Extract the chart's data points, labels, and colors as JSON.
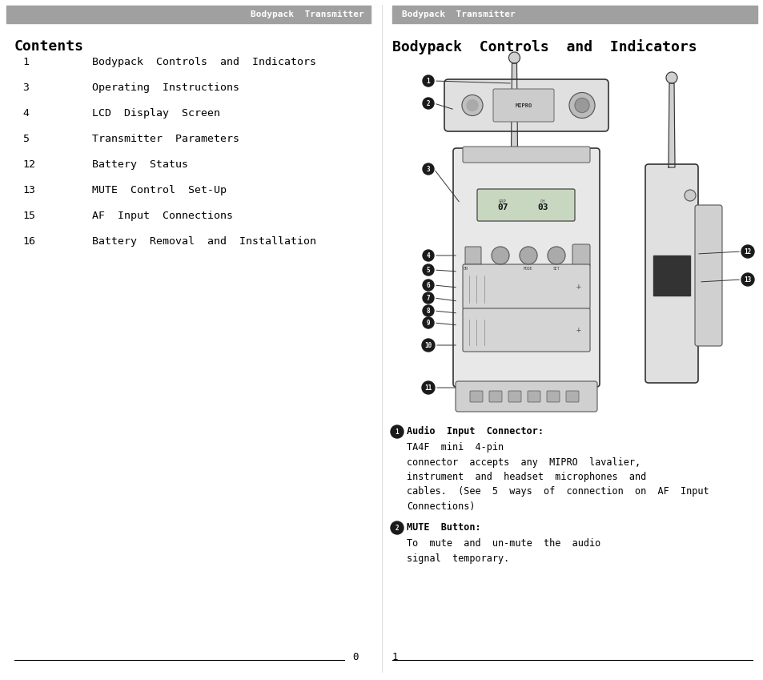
{
  "header_color": "#a0a0a0",
  "header_text": "Bodypack  Transmitter",
  "header_text_color": "#ffffff",
  "bg_color": "#ffffff",
  "text_color": "#000000",
  "left_title": "Contents",
  "toc_items": [
    [
      "1",
      "Bodypack  Controls  and  Indicators"
    ],
    [
      "3",
      "Operating  Instructions"
    ],
    [
      "4",
      "LCD  Display  Screen"
    ],
    [
      "5",
      "Transmitter  Parameters"
    ],
    [
      "12",
      "Battery  Status"
    ],
    [
      "13",
      "MUTE  Control  Set-Up"
    ],
    [
      "15",
      "AF  Input  Connections"
    ],
    [
      "16",
      "Battery  Removal  and  Installation"
    ]
  ],
  "right_title": "Bodypack  Controls  and  Indicators",
  "desc1_bold": "Audio  Input  Connector:",
  "desc1_text": "TA4F  mini  4-pin\nconnector  accepts  any  MIPRO  lavalier,\ninstrument  and  headset  microphones  and\ncables.  (See  5  ways  of  connection  on  AF  Input\nConnections)",
  "desc2_bold": "MUTE  Button:",
  "desc2_text": "To  mute  and  un-mute  the  audio\nsignal  temporary.",
  "page_left": "0",
  "page_right": "1",
  "divider_color": "#000000"
}
